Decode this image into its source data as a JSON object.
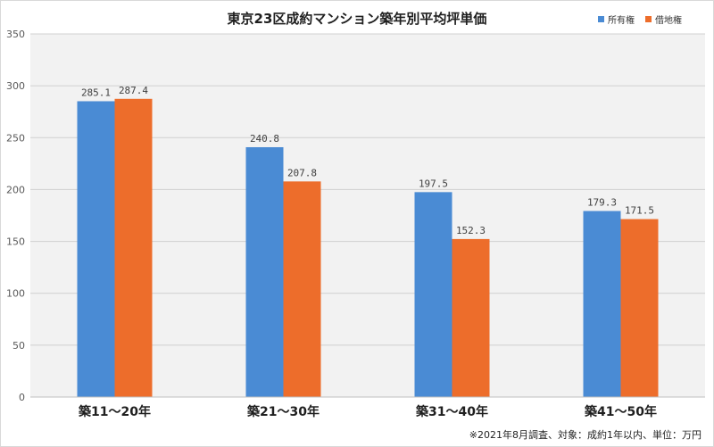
{
  "chart_data": {
    "type": "bar",
    "title": "東京23区成約マンション築年別平均坪単価",
    "categories": [
      "築11～20年",
      "築21～30年",
      "築31～40年",
      "築41～50年"
    ],
    "series": [
      {
        "name": "所有権",
        "values": [
          285.1,
          240.8,
          197.5,
          179.3
        ],
        "color": "#4a8bd4"
      },
      {
        "name": "借地権",
        "values": [
          287.4,
          207.8,
          152.3,
          171.5
        ],
        "color": "#ed6d2b"
      }
    ],
    "data_labels": [
      [
        "285.1",
        "240.8",
        "197.5",
        "179.3"
      ],
      [
        "287.4",
        "207.8",
        "152.3",
        "171.5"
      ]
    ],
    "yticks": [
      "0",
      "50",
      "100",
      "150",
      "200",
      "250",
      "300",
      "350"
    ],
    "ylim": [
      0,
      350
    ],
    "grid": true,
    "legend_position": "top-right",
    "footnote": "※2021年8月調査、対象：成約1年以内、単位：万円"
  }
}
